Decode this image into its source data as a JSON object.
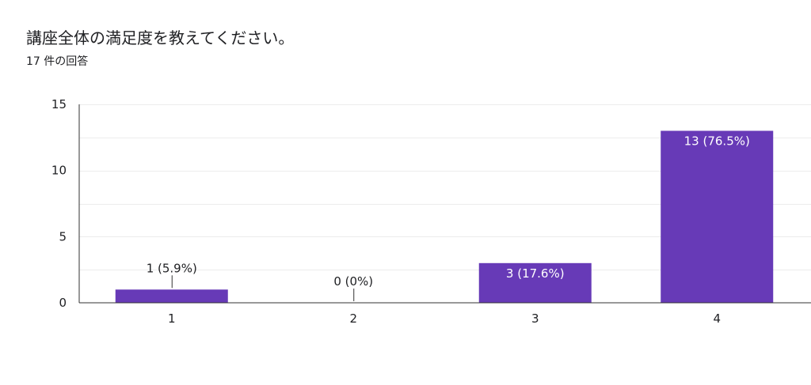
{
  "header": {
    "title": "講座全体の満足度を教えてください。",
    "response_count": "17 件の回答"
  },
  "colors": {
    "bar": "#673AB7",
    "grid": "#ECECEC",
    "axis": "#333333",
    "label_inside": "#FFFFFF",
    "label_outside": "#202124"
  },
  "chart_data": {
    "type": "bar",
    "categories": [
      "1",
      "2",
      "3",
      "4"
    ],
    "values": [
      1,
      0,
      3,
      13
    ],
    "data_labels": [
      "1 (5.9%)",
      "0 (0%)",
      "3 (17.6%)",
      "13 (76.5%)"
    ],
    "y_ticks": [
      "0",
      "5",
      "10",
      "15"
    ],
    "ylim": [
      0,
      15
    ],
    "grid": true,
    "title": "講座全体の満足度を教えてください。",
    "xlabel": "",
    "ylabel": ""
  }
}
